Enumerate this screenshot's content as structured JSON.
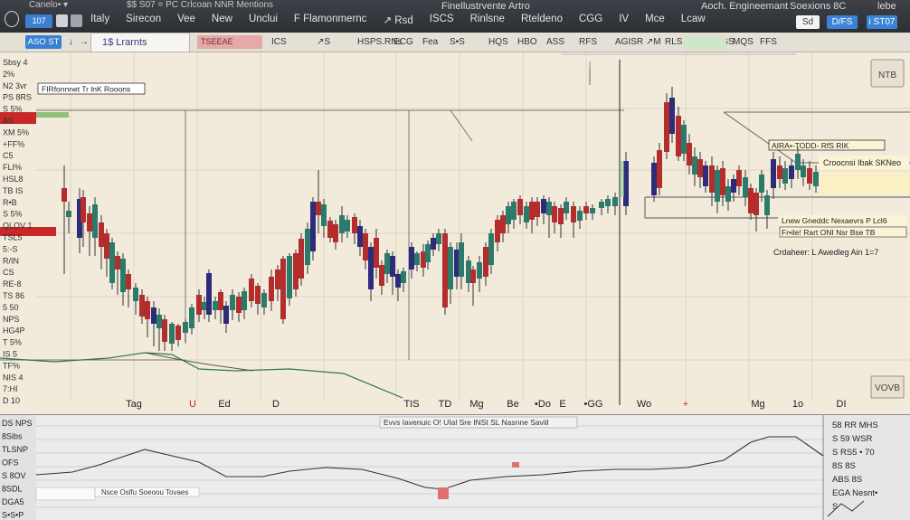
{
  "window": {
    "top_left_label": "Canelo• ▾",
    "top_mid_label": "$$ S07  =  PC  Crlcoan NNR Mentions",
    "title_center": "Finellustrvente Artro",
    "title_right": "Aoch. Engineemant",
    "title_right2": "Soexions  8C",
    "title_right3": "lebe"
  },
  "topbar": {
    "logo_button": "107",
    "menu_items": [
      "Italy",
      "Sirecon",
      "Vee",
      "New",
      "Unclui",
      "F Flamonmernc",
      "↗ Rsd",
      "ISCS",
      "Rinlsne",
      "Rteldeno",
      "CGG",
      "IV",
      "Mce",
      "Lcaw"
    ],
    "right_buttons": [
      {
        "label": "Sd",
        "style": "white"
      },
      {
        "label": "D/FS",
        "style": "blue"
      },
      {
        "label": "і ST07",
        "style": "blue"
      }
    ]
  },
  "toolbar2": {
    "left_button": "ASO ST",
    "left_items": [
      "↓",
      "→"
    ],
    "active_tab": "1$ Lrarnts",
    "red_tab": "TSEEAE",
    "items": [
      "ICS",
      "↗S",
      "HSPS.RNs",
      "ECG",
      "Fea",
      "S•S",
      "HQS",
      "HBO",
      "ASS",
      "RFS",
      "AGISR ↗M",
      "RLS",
      "S",
      "DGS",
      "MQS",
      "FFS"
    ]
  },
  "main_chart": {
    "panel_label": "FIRfonnnet Tr lnK Rooons",
    "watermark_top_right": "NTB",
    "bottom_right_box": "VOVB",
    "annotations": [
      "AIRA•-TODD- RfS  RIK",
      "Croocnsi Ibak SKNeo",
      "Lnew Gneddc Nexaevrs  P Lcl6",
      "Fr•ile! Rart ONI  Nsr  Bse TB",
      "Crdaheer: L Awedleg Ain 1=7"
    ],
    "left_axis": [
      "Sbsy 4",
      "2%",
      "N2 3vr",
      "PS 8RS",
      "S 5%",
      "AS",
      "XM 5%",
      "+FF%",
      "C5",
      "FLI%",
      "HSL8",
      "TB IS",
      "R•B",
      "S 5%",
      "QLOV 1",
      "TSL5",
      "5:-S",
      "R/IN",
      "CS",
      "RE-8",
      "TS 86",
      "5 50",
      "NPS",
      "HG4P",
      "T 5%",
      "IS 5",
      "TF%",
      "NIS 4",
      "7:HI",
      "D 10"
    ],
    "x_labels": [
      "Tag",
      "U",
      "Ed",
      "D",
      "TIS",
      "TD",
      "Mg",
      "Be",
      "•Do",
      "E",
      "•GG",
      "Wo",
      "+",
      "Mg",
      "1o",
      "DI"
    ]
  },
  "sub_chart": {
    "title": "Evvs Iavenuic O! UIal Sre  INSt SL Nasnne Saviil",
    "overlay_label": "Nsce Oslfu Soeoou  Tovaes",
    "left_labels": [
      "DS NPS",
      "8Sibs",
      "TLSNP",
      "OFS",
      "S 8OV",
      "8SDL",
      "DGA5",
      "S•S•P"
    ],
    "right_labels": [
      "58  RR MHS",
      "S  59 WSR",
      "S  RS5 • 70",
      "8S  8S",
      "ABS  8S",
      "EGA Nesnt•",
      "S"
    ]
  },
  "colors": {
    "bull": "#2b7a6a",
    "bear": "#b32d2d",
    "navy": "#2c2c7a",
    "dark_green": "#0f5a2a"
  }
}
